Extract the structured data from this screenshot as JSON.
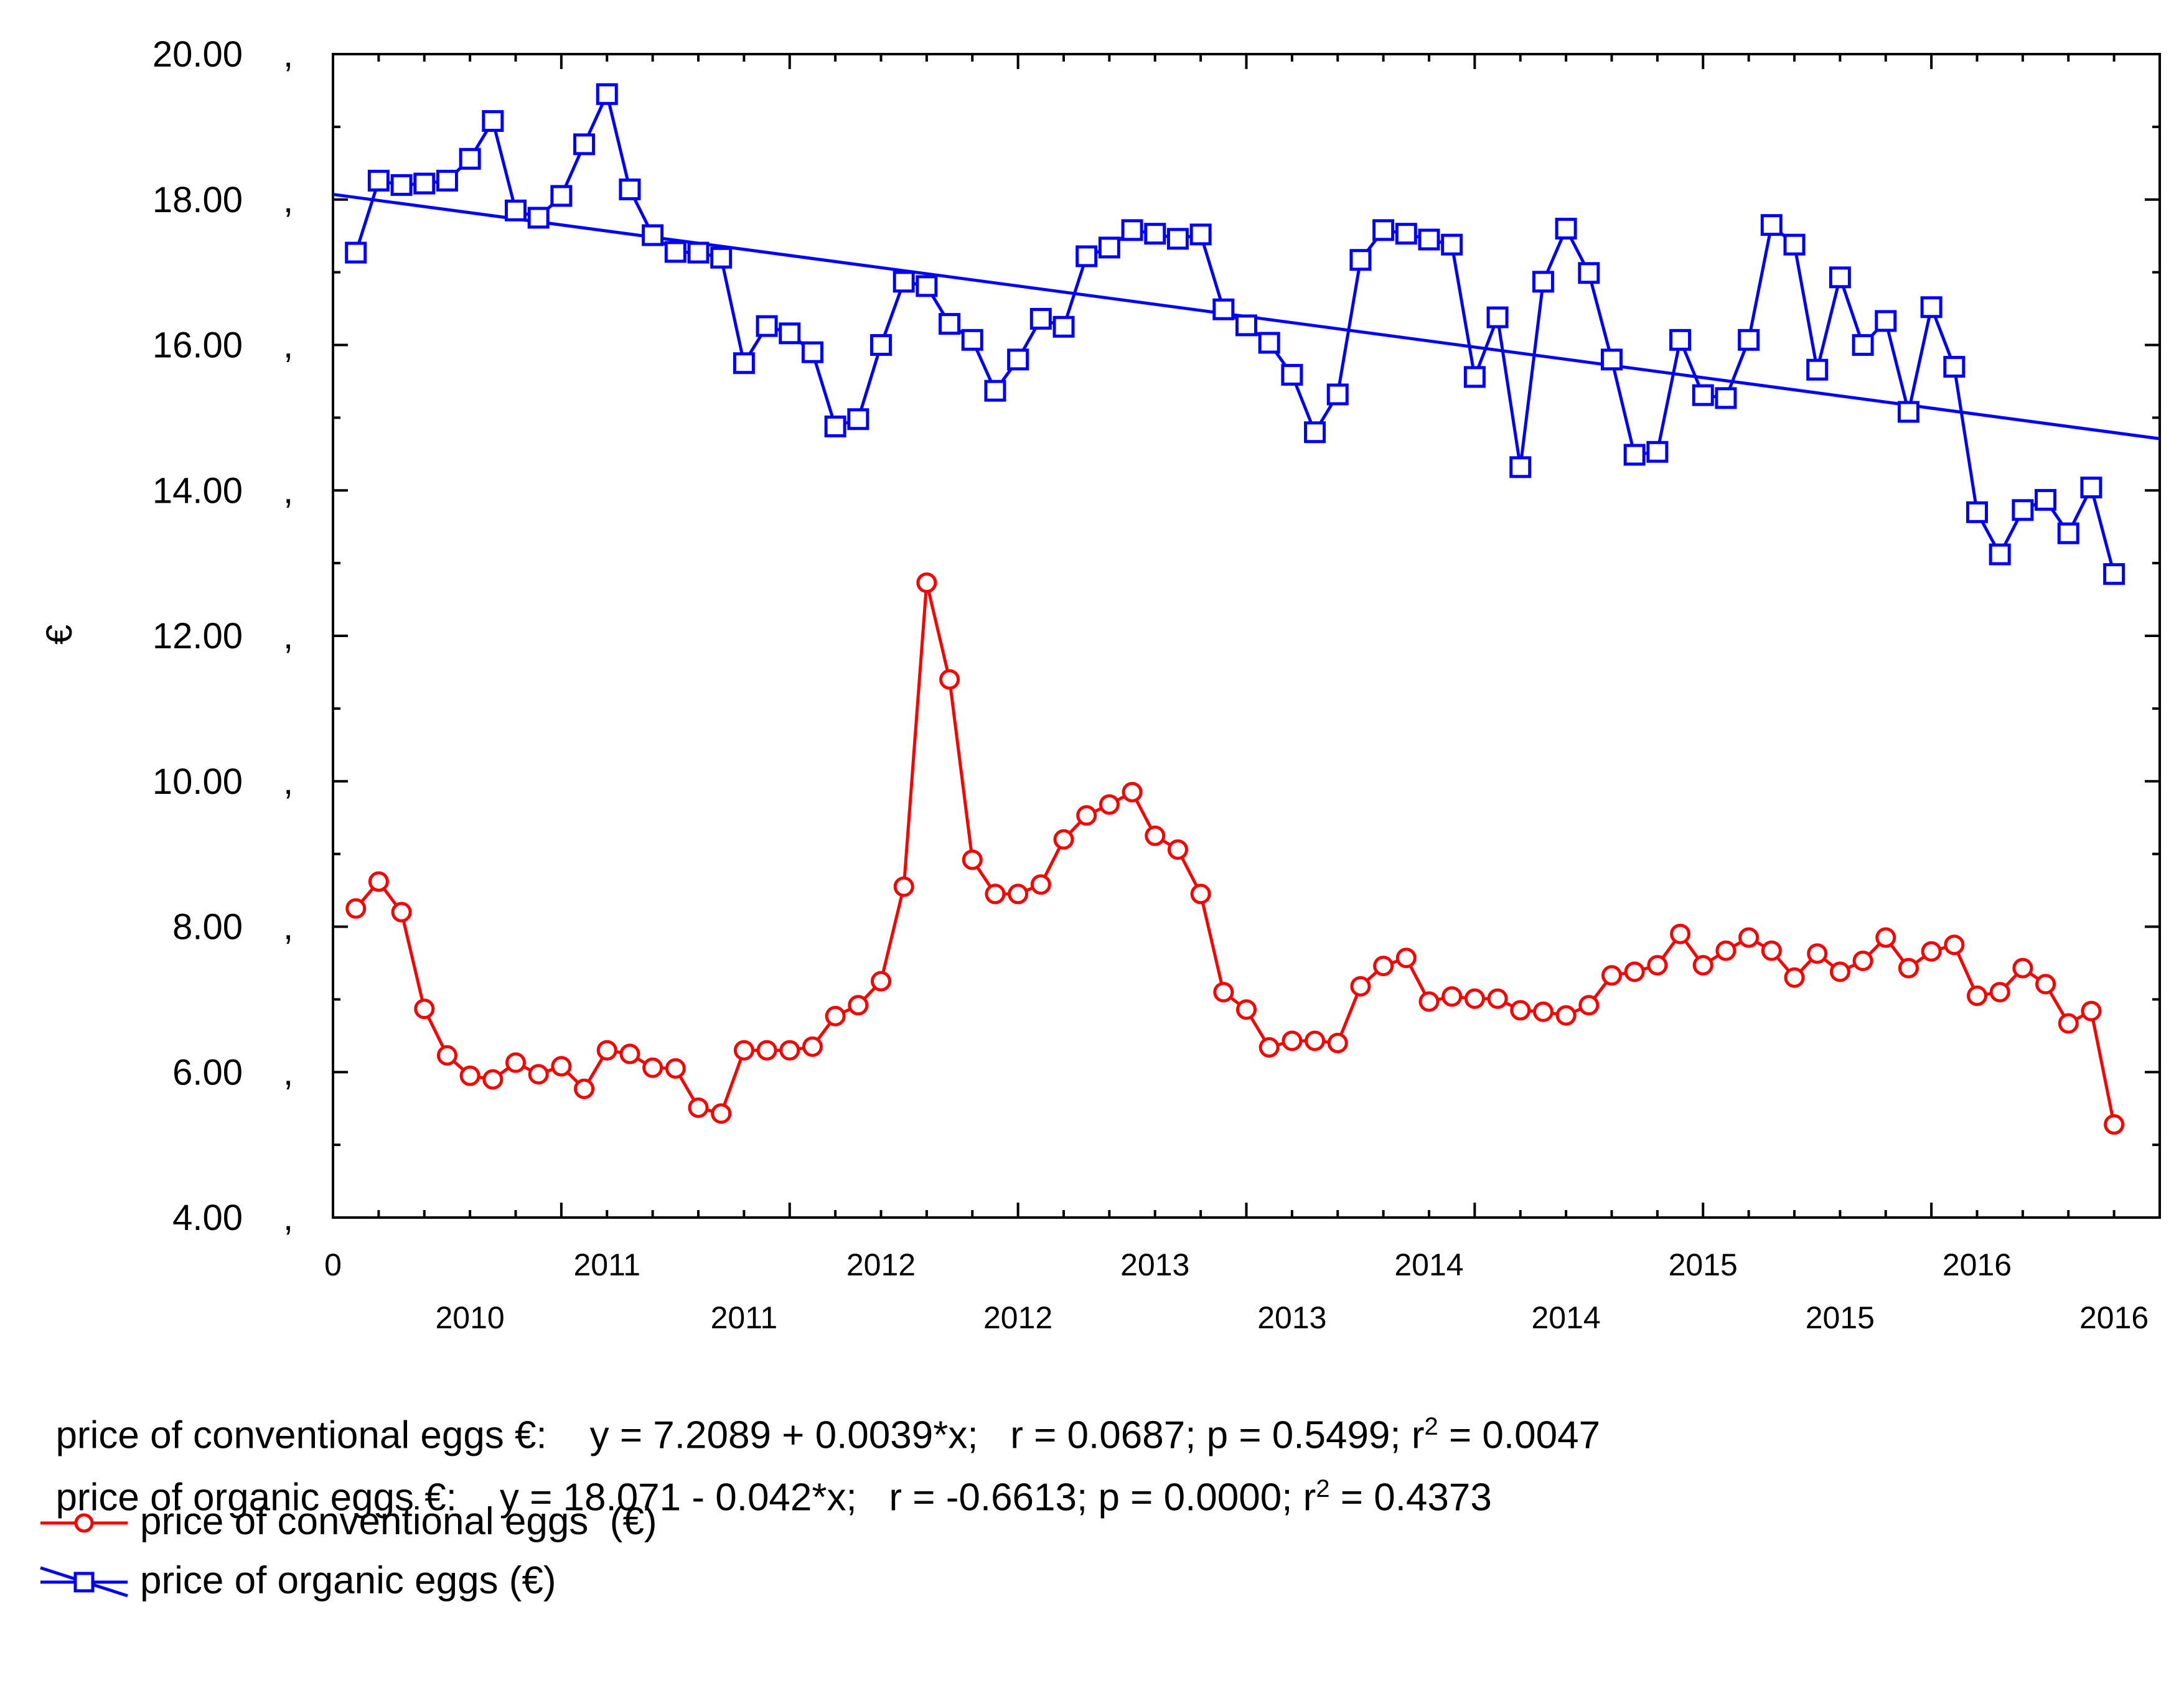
{
  "chart_data": {
    "type": "line",
    "title": "",
    "ylabel": "€",
    "xlabel": "",
    "ylim": [
      4,
      20
    ],
    "y_ticks": [
      "20.00",
      "18.00",
      "16.00",
      "14.00",
      "12.00",
      "10.00",
      "8.00",
      "6.00",
      "4.00"
    ],
    "y_tick_values": [
      20,
      18,
      16,
      14,
      12,
      10,
      8,
      6,
      4
    ],
    "y_tick_suffix": ",",
    "x_range": [
      0,
      80
    ],
    "x_top_labels": [
      {
        "label": "0",
        "x": 0
      },
      {
        "label": "2011",
        "x": 12
      },
      {
        "label": "2012",
        "x": 24
      },
      {
        "label": "2013",
        "x": 36
      },
      {
        "label": "2014",
        "x": 48
      },
      {
        "label": "2015",
        "x": 60
      },
      {
        "label": "2016",
        "x": 72
      }
    ],
    "x_bottom_labels": [
      {
        "label": "2010",
        "x": 6
      },
      {
        "label": "2011",
        "x": 18
      },
      {
        "label": "2012",
        "x": 30
      },
      {
        "label": "2013",
        "x": 42
      },
      {
        "label": "2014",
        "x": 54
      },
      {
        "label": "2015",
        "x": 66
      },
      {
        "label": "2016",
        "x": 78
      }
    ],
    "series": [
      {
        "name": "price of conventional eggs (€)",
        "color": "#ff0000",
        "marker": "circle",
        "values": [
          8.25,
          8.62,
          8.2,
          6.87,
          6.23,
          5.95,
          5.9,
          6.13,
          5.97,
          6.08,
          5.77,
          6.3,
          6.25,
          6.06,
          6.05,
          5.51,
          5.43,
          6.3,
          6.3,
          6.3,
          6.35,
          6.77,
          6.92,
          7.25,
          8.55,
          12.73,
          11.4,
          8.92,
          8.45,
          8.45,
          8.58,
          9.2,
          9.53,
          9.68,
          9.85,
          9.25,
          9.06,
          8.45,
          7.1,
          6.86,
          6.34,
          6.43,
          6.43,
          6.4,
          7.18,
          7.46,
          7.57,
          6.97,
          7.04,
          7.01,
          7.01,
          6.85,
          6.83,
          6.78,
          6.92,
          7.33,
          7.38,
          7.47,
          7.9,
          7.47,
          7.67,
          7.85,
          7.67,
          7.3,
          7.63,
          7.38,
          7.53,
          7.85,
          7.43,
          7.66,
          7.75,
          7.05,
          7.1,
          7.43,
          7.21,
          6.67,
          6.84,
          5.28
        ]
      },
      {
        "name": "price of organic eggs (€)",
        "color": "#0000ff",
        "marker": "square",
        "values": [
          17.27,
          18.26,
          18.2,
          18.22,
          18.26,
          18.56,
          19.08,
          17.85,
          17.75,
          18.05,
          18.76,
          19.45,
          18.14,
          17.51,
          17.28,
          17.27,
          17.2,
          15.75,
          16.26,
          16.16,
          15.9,
          14.88,
          14.98,
          16.0,
          16.87,
          16.81,
          16.29,
          16.07,
          15.37,
          15.8,
          16.36,
          16.25,
          17.22,
          17.34,
          17.58,
          17.53,
          17.46,
          17.52,
          16.49,
          16.27,
          16.03,
          15.59,
          14.8,
          15.32,
          17.17,
          17.58,
          17.53,
          17.45,
          17.38,
          15.56,
          16.38,
          14.32,
          16.87,
          17.6,
          16.99,
          15.8,
          14.49,
          14.53,
          16.07,
          15.31,
          15.27,
          16.07,
          17.65,
          17.38,
          15.66,
          16.93,
          16.0,
          16.33,
          15.08,
          16.52,
          15.7,
          13.7,
          13.12,
          13.73,
          13.87,
          13.41,
          14.04,
          12.85
        ]
      }
    ],
    "trendlines": [
      {
        "series": "price of organic eggs (€)",
        "color": "#0000ff",
        "intercept": 18.071,
        "slope": -0.042
      }
    ]
  },
  "stats": {
    "conventional_prefix": "price of conventional eggs €:    y = 7.2089 + 0.0039*x;   r = 0.0687; p = 0.5499; r",
    "conventional_sup": "2",
    "conventional_suffix": " = 0.0047",
    "organic_prefix": "price of organic eggs €:    y = 18.071 - 0.042*x;   r = -0.6613; p = 0.0000; r",
    "organic_sup": "2",
    "organic_suffix": " = 0.4373"
  },
  "legend": {
    "conventional": "price of conventional eggs  (€)",
    "organic": "price of organic eggs (€)"
  }
}
